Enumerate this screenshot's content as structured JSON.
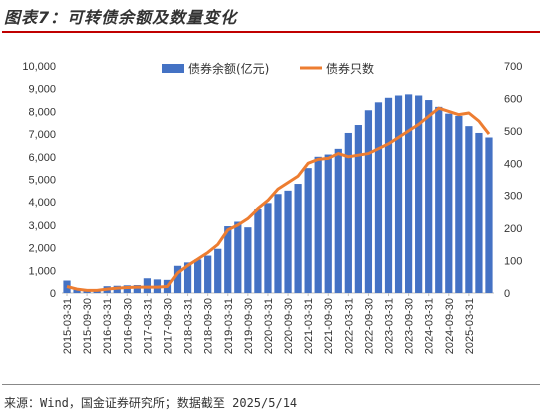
{
  "title": "图表7：可转债余额及数量变化",
  "source": "来源：Wind，国金证券研究所；数据截至 2025/5/14",
  "colors": {
    "bar": "#4472c4",
    "line": "#ed7d31",
    "title_rule": "#c00000"
  },
  "chart_data": {
    "type": "bar",
    "legend_position": "top",
    "grid": false,
    "y_left_ticks": [
      "0",
      "1,000",
      "2,000",
      "3,000",
      "4,000",
      "5,000",
      "6,000",
      "7,000",
      "8,000",
      "9,000",
      "10,000"
    ],
    "y_right_ticks": [
      "0",
      "100",
      "200",
      "300",
      "400",
      "500",
      "600",
      "700"
    ],
    "ylim_left": [
      0,
      10000
    ],
    "ylim_right": [
      0,
      700
    ],
    "x_tick_labels": [
      "2015-03-31",
      "2015-09-30",
      "2016-03-31",
      "2016-09-30",
      "2017-03-31",
      "2017-09-30",
      "2018-03-31",
      "2018-09-30",
      "2019-03-31",
      "2019-09-30",
      "2020-03-31",
      "2020-09-30",
      "2021-03-31",
      "2021-09-30",
      "2022-03-31",
      "2022-09-30",
      "2023-03-31",
      "2023-09-30",
      "2024-03-31",
      "2024-09-30",
      "2025-03-31"
    ],
    "series": [
      {
        "name": "债券余额(亿元)",
        "type": "bar",
        "axis": "left",
        "values": [
          550,
          150,
          100,
          120,
          300,
          320,
          340,
          350,
          650,
          600,
          580,
          1200,
          1350,
          1480,
          1650,
          1950,
          2950,
          3150,
          2900,
          3700,
          3950,
          4350,
          4500,
          4800,
          5500,
          6000,
          6100,
          6350,
          7050,
          7400,
          8050,
          8400,
          8600,
          8700,
          8750,
          8700,
          8500,
          8200,
          7900,
          7800,
          7350,
          7050,
          6850
        ]
      },
      {
        "name": "债券只数",
        "type": "line",
        "axis": "right",
        "values": [
          20,
          12,
          8,
          8,
          12,
          15,
          17,
          18,
          18,
          18,
          20,
          62,
          85,
          105,
          125,
          150,
          195,
          210,
          230,
          260,
          285,
          320,
          340,
          360,
          400,
          412,
          415,
          430,
          420,
          425,
          430,
          445,
          460,
          480,
          500,
          520,
          545,
          570,
          560,
          550,
          555,
          530,
          490
        ]
      }
    ]
  }
}
